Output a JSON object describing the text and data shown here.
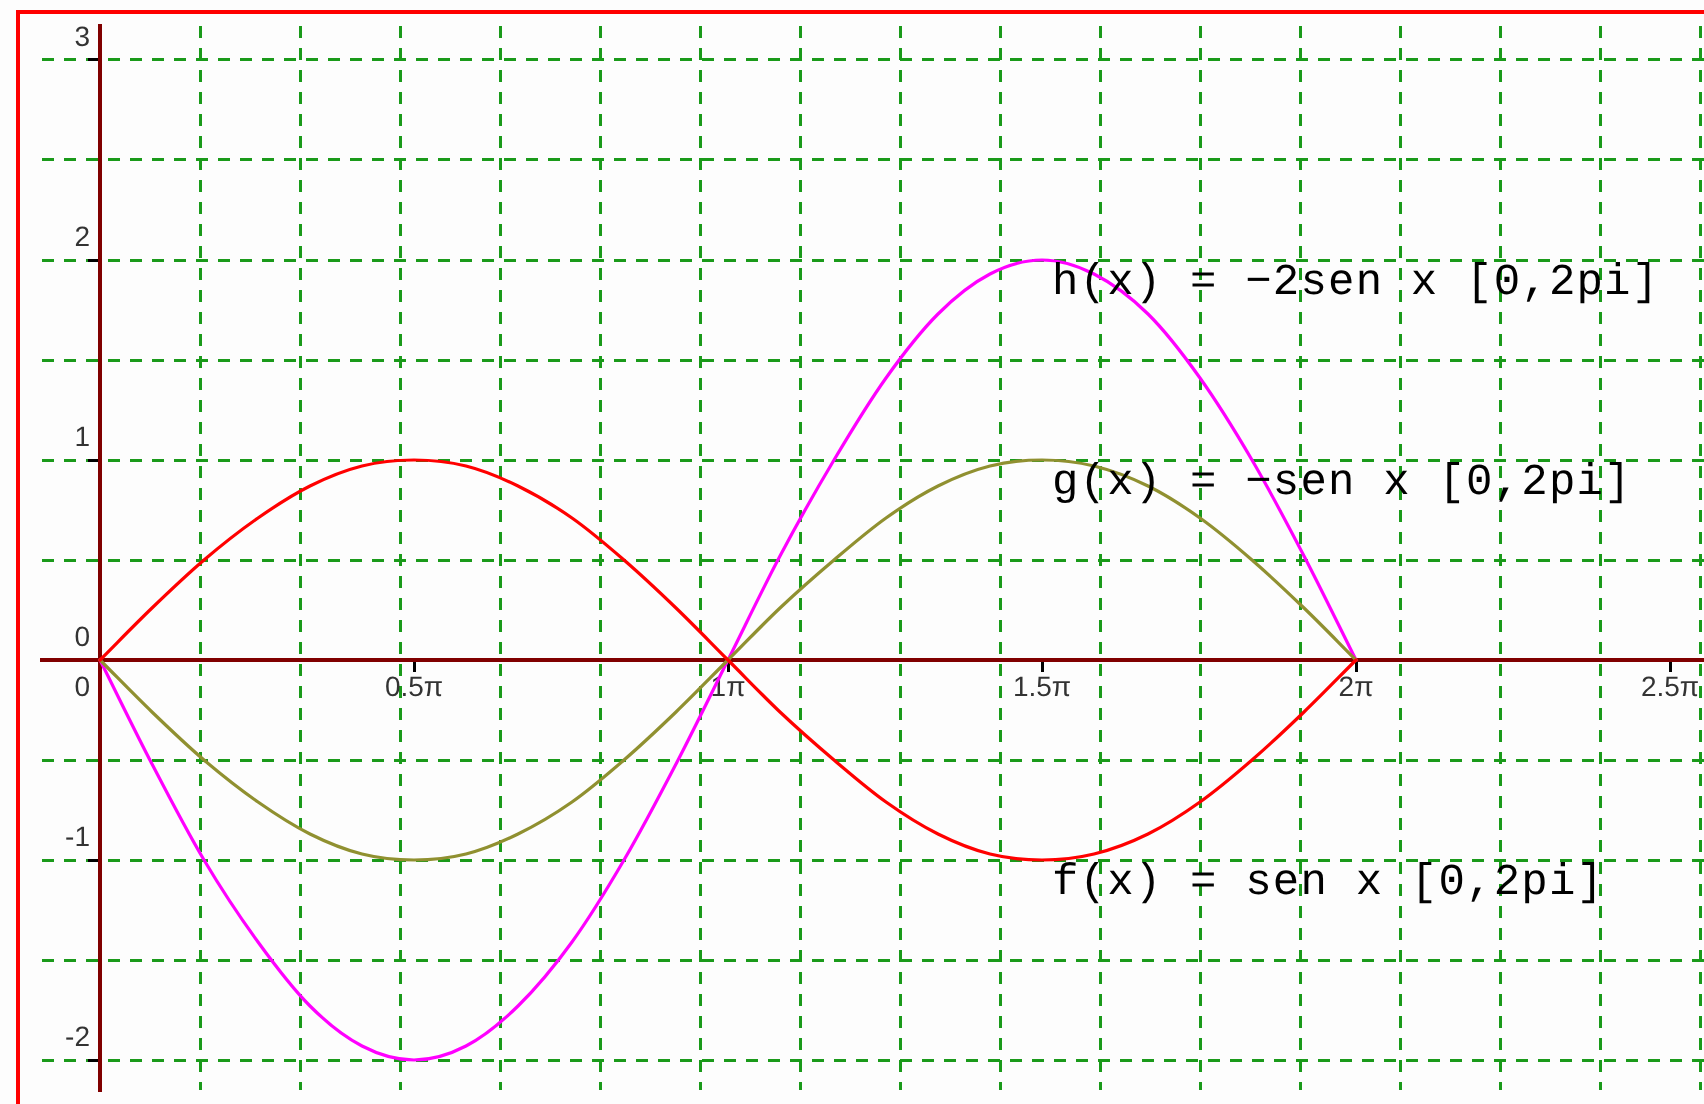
{
  "chart_data": {
    "type": "line",
    "series": [
      {
        "name": "f(x) = sen x [0,2pi]",
        "color": "#ff0000",
        "x": [
          0,
          0.26,
          0.52,
          0.79,
          1.05,
          1.31,
          1.57,
          1.83,
          2.09,
          2.36,
          2.62,
          2.88,
          3.14,
          3.4,
          3.67,
          3.93,
          4.19,
          4.45,
          4.71,
          4.97,
          5.24,
          5.5,
          5.76,
          6.02,
          6.28
        ],
        "values": [
          0,
          0.26,
          0.5,
          0.71,
          0.87,
          0.97,
          1,
          0.97,
          0.87,
          0.71,
          0.5,
          0.26,
          0,
          -0.26,
          -0.5,
          -0.71,
          -0.87,
          -0.97,
          -1,
          -0.97,
          -0.87,
          -0.71,
          -0.5,
          -0.26,
          0
        ]
      },
      {
        "name": "g(x) = −sen x [0,2pi]",
        "color": "#909030",
        "x": [
          0,
          0.26,
          0.52,
          0.79,
          1.05,
          1.31,
          1.57,
          1.83,
          2.09,
          2.36,
          2.62,
          2.88,
          3.14,
          3.4,
          3.67,
          3.93,
          4.19,
          4.45,
          4.71,
          4.97,
          5.24,
          5.5,
          5.76,
          6.02,
          6.28
        ],
        "values": [
          0,
          -0.26,
          -0.5,
          -0.71,
          -0.87,
          -0.97,
          -1,
          -0.97,
          -0.87,
          -0.71,
          -0.5,
          -0.26,
          0,
          0.26,
          0.5,
          0.71,
          0.87,
          0.97,
          1,
          0.97,
          0.87,
          0.71,
          0.5,
          0.26,
          0
        ]
      },
      {
        "name": "h(x) = −2sen x [0,2pi]",
        "color": "#ff00ff",
        "x": [
          0,
          0.26,
          0.52,
          0.79,
          1.05,
          1.31,
          1.57,
          1.83,
          2.09,
          2.36,
          2.62,
          2.88,
          3.14,
          3.4,
          3.67,
          3.93,
          4.19,
          4.45,
          4.71,
          4.97,
          5.24,
          5.5,
          5.76,
          6.02,
          6.28
        ],
        "values": [
          0,
          -0.52,
          -1,
          -1.41,
          -1.73,
          -1.93,
          -2,
          -1.93,
          -1.73,
          -1.41,
          -1,
          -0.52,
          0,
          0.52,
          1,
          1.41,
          1.73,
          1.93,
          2,
          1.93,
          1.73,
          1.41,
          1,
          0.52,
          0
        ]
      }
    ],
    "xlim": [
      -0.29,
      8.02
    ],
    "xticks": [
      0,
      {
        "value": 0.5,
        "label": null
      },
      {
        "value": 1,
        "label": null
      },
      {
        "value": 1.5,
        "label": null
      },
      {
        "value": 1.57,
        "label": "0.5π"
      },
      {
        "value": 2,
        "label": null
      },
      {
        "value": 2.5,
        "label": null
      },
      {
        "value": 3,
        "label": null
      },
      {
        "value": 3.14,
        "label": "1π"
      },
      {
        "value": 3.5,
        "label": null
      },
      {
        "value": 4,
        "label": null
      },
      {
        "value": 4.5,
        "label": null
      },
      {
        "value": 4.71,
        "label": "1.5π"
      },
      {
        "value": 5,
        "label": null
      },
      {
        "value": 5.5,
        "label": null
      },
      {
        "value": 6,
        "label": null
      },
      {
        "value": 6.28,
        "label": "2π"
      },
      {
        "value": 6.5,
        "label": null
      },
      {
        "value": 7,
        "label": null
      },
      {
        "value": 7.5,
        "label": null
      },
      {
        "value": 7.85,
        "label": "2.5π"
      },
      {
        "value": 8,
        "label": null
      }
    ],
    "ylim": [
      -2.15,
      3.17
    ],
    "yticks": [
      -2,
      {
        "value": -1.5,
        "label": null
      },
      -1,
      {
        "value": -0.5,
        "label": null
      },
      0,
      {
        "value": 0.5,
        "label": null
      },
      1,
      {
        "value": 1.5,
        "label": null
      },
      2,
      {
        "value": 2.5,
        "label": null
      },
      3
    ],
    "grid": true
  }
}
